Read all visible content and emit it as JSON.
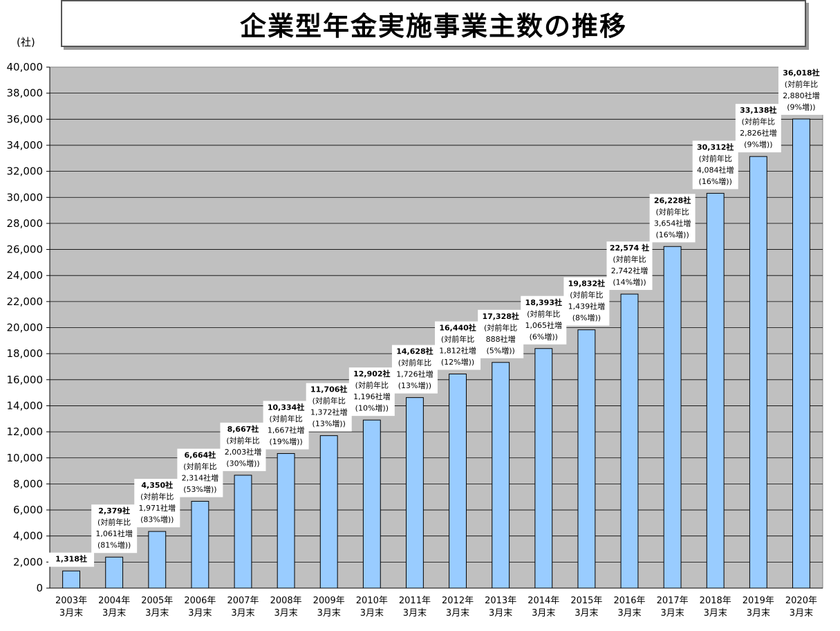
{
  "chart_data": {
    "type": "bar",
    "title": "企業型年金実施事業主数の推移",
    "ylabel": "(社)",
    "ylim": [
      0,
      40000
    ],
    "yticks": [
      "0",
      "2,000",
      "4,000",
      "6,000",
      "8,000",
      "10,000",
      "12,000",
      "14,000",
      "16,000",
      "18,000",
      "20,000",
      "22,000",
      "24,000",
      "26,000",
      "28,000",
      "30,000",
      "32,000",
      "34,000",
      "36,000",
      "38,000",
      "40,000"
    ],
    "grid": true,
    "colors": {
      "bar": "#99ccff",
      "plot_bg": "#c0c0c0",
      "label_bg": "#ffffff"
    },
    "categories": [
      [
        "2003年",
        "3月末"
      ],
      [
        "2004年",
        "3月末"
      ],
      [
        "2005年",
        "3月末"
      ],
      [
        "2006年",
        "3月末"
      ],
      [
        "2007年",
        "3月末"
      ],
      [
        "2008年",
        "3月末"
      ],
      [
        "2009年",
        "3月末"
      ],
      [
        "2010年",
        "3月末"
      ],
      [
        "2011年",
        "3月末"
      ],
      [
        "2012年",
        "3月末"
      ],
      [
        "2013年",
        "3月末"
      ],
      [
        "2014年",
        "3月末"
      ],
      [
        "2015年",
        "3月末"
      ],
      [
        "2016年",
        "3月末"
      ],
      [
        "2017年",
        "3月末"
      ],
      [
        "2018年",
        "3月末"
      ],
      [
        "2019年",
        "3月末"
      ],
      [
        "2020年",
        "3月末"
      ]
    ],
    "values": [
      1318,
      2379,
      4350,
      6664,
      8667,
      10334,
      11706,
      12902,
      14628,
      16440,
      17328,
      18393,
      19832,
      22574,
      26228,
      30312,
      33138,
      36018
    ],
    "data_labels": [
      [
        "1,318社"
      ],
      [
        "2,379社",
        "(対前年比",
        "1,061社増",
        "(81%増))"
      ],
      [
        "4,350社",
        "(対前年比",
        "1,971社増",
        "(83%増))"
      ],
      [
        "6,664社",
        "(対前年比",
        "2,314社増",
        "(53%増))"
      ],
      [
        "8,667社",
        "(対前年比",
        "2,003社増",
        "(30%増))"
      ],
      [
        "10,334社",
        "(対前年比",
        "1,667社増",
        "(19%増))"
      ],
      [
        "11,706社",
        "(対前年比",
        "1,372社増",
        "(13%増))"
      ],
      [
        "12,902社",
        "(対前年比",
        "1,196社増",
        "(10%増))"
      ],
      [
        "14,628社",
        "(対前年比",
        "1,726社増",
        "(13%増))"
      ],
      [
        "16,440社",
        "(対前年比",
        "1,812社増",
        "(12%増))"
      ],
      [
        "17,328社",
        "(対前年比",
        "888社増",
        "(5%増))"
      ],
      [
        "18,393社",
        "(対前年比",
        "1,065社増",
        "(6%増))"
      ],
      [
        "19,832社",
        "(対前年比",
        "1,439社増",
        "(8%増))"
      ],
      [
        "22,574 社",
        "(対前年比",
        "2,742社増",
        "(14%増))"
      ],
      [
        "26,228社",
        "(対前年比",
        "3,654社増",
        "(16%増))"
      ],
      [
        "30,312社",
        "(対前年比",
        "4,084社増",
        "(16%増))"
      ],
      [
        "33,138社",
        "(対前年比",
        "2,826社増",
        "(9%増))"
      ],
      [
        "36,018社",
        "(対前年比",
        "2,880社増",
        "(9%増))"
      ]
    ]
  }
}
